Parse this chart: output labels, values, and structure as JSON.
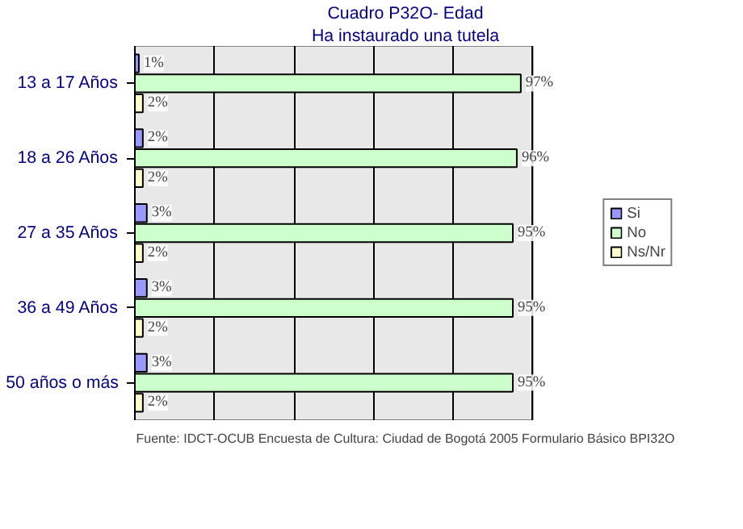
{
  "chart_data": {
    "type": "bar",
    "orientation": "horizontal",
    "title": "Cuadro P32O- Edad",
    "subtitle": "Ha instaurado una tutela",
    "categories": [
      "13 a 17 Años",
      "18 a 26 Años",
      "27 a 35 Años",
      "36 a 49 Años",
      "50 años o más"
    ],
    "series": [
      {
        "name": "Si",
        "color": "#9999ff",
        "values": [
          1,
          2,
          3,
          3,
          3
        ],
        "value_labels": [
          "1%",
          "2%",
          "3%",
          "3%",
          "3%"
        ]
      },
      {
        "name": "No",
        "color": "#ccffcc",
        "values": [
          97,
          96,
          95,
          95,
          95
        ],
        "value_labels": [
          "97%",
          "96%",
          "95%",
          "95%",
          "95%"
        ]
      },
      {
        "name": "Ns/Nr",
        "color": "#ffffcc",
        "values": [
          2,
          2,
          2,
          2,
          2
        ],
        "value_labels": [
          "2%",
          "2%",
          "2%",
          "2%",
          "2%"
        ]
      }
    ],
    "xlim": [
      0,
      100
    ],
    "xticks": [
      {
        "value": 0,
        "label": null
      },
      {
        "value": 20,
        "label": null
      },
      {
        "value": 40,
        "label": null
      },
      {
        "value": 60,
        "label": null
      },
      {
        "value": 80,
        "label": null
      },
      {
        "value": 100,
        "label": null
      }
    ],
    "grid": "x",
    "legend": "right",
    "tick_labels": "y",
    "annotations": [
      "Fuente: IDCT-OCUB Encuesta de Cultura: Ciudad de Bogotá 2005 Formulario Básico BPI32O"
    ]
  }
}
